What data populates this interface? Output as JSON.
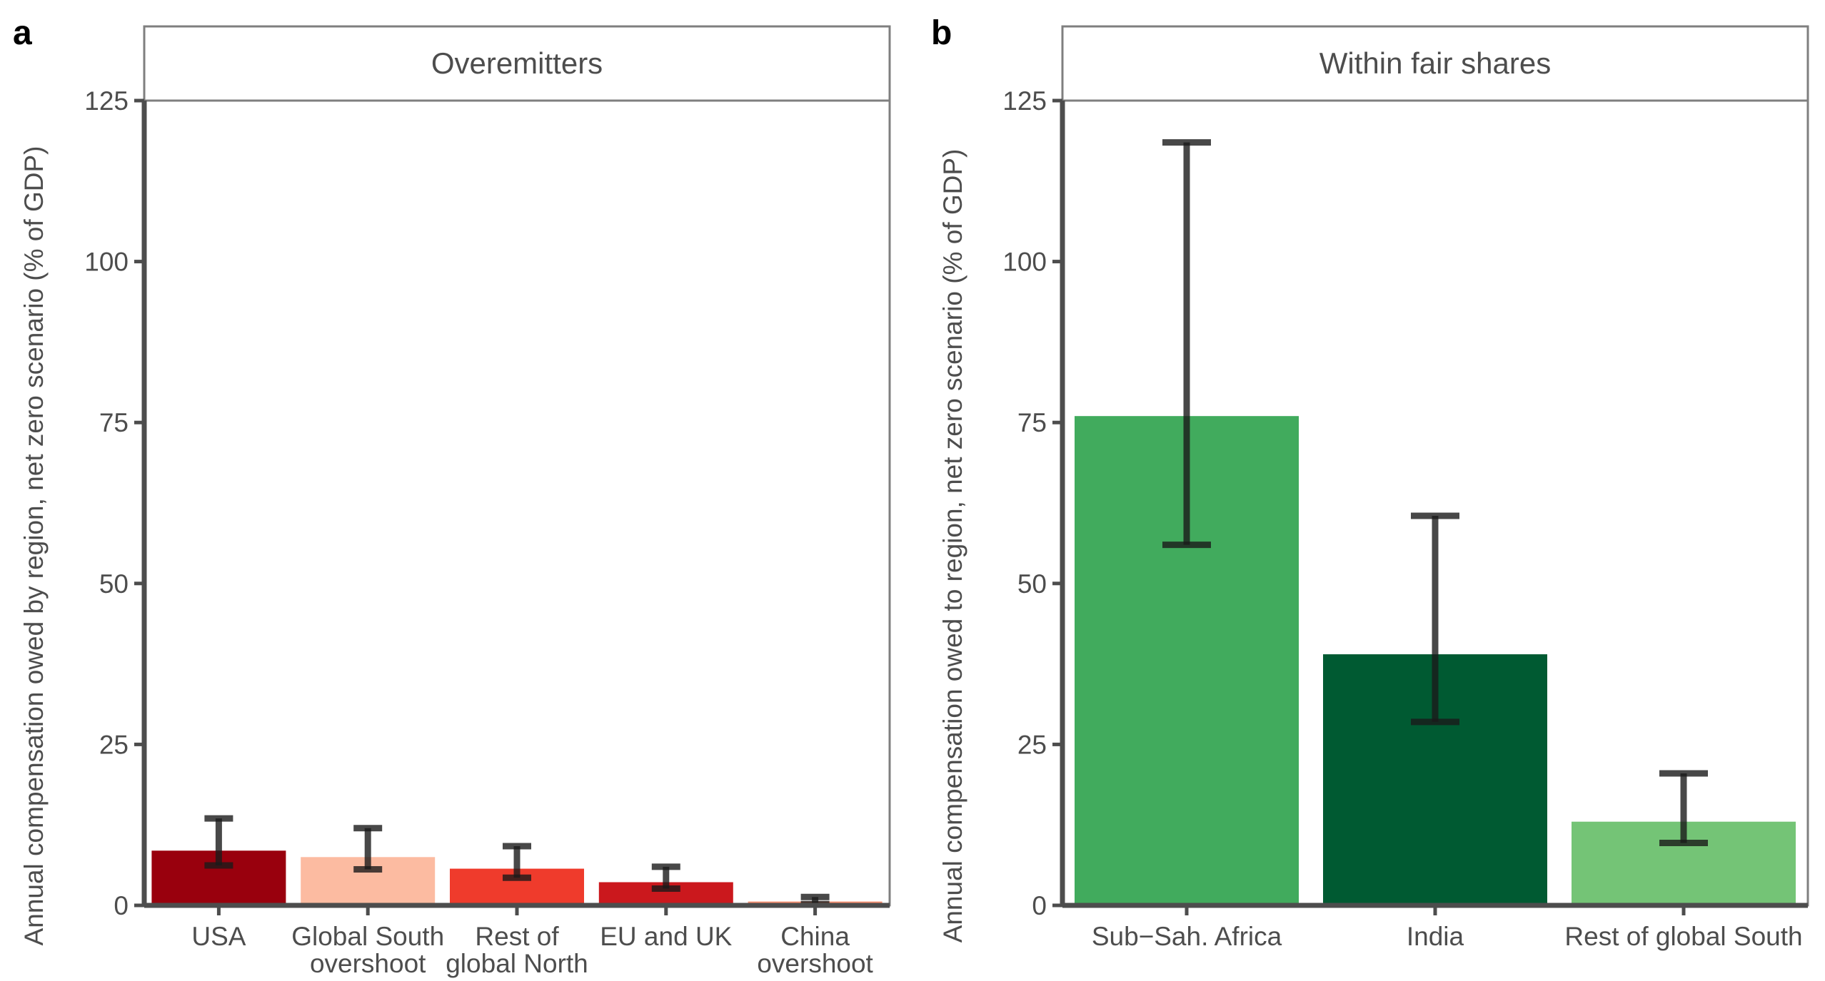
{
  "chart_data": [
    {
      "type": "bar",
      "panel_letter": "a",
      "strip_title": "Overemitters",
      "ylabel": "Annual compensation owed by region, net zero scenario (% of GDP)",
      "ylim": [
        0,
        125
      ],
      "yticks": [
        0,
        25,
        50,
        75,
        100,
        125
      ],
      "categories": [
        [
          "USA"
        ],
        [
          "Global South",
          "overshoot"
        ],
        [
          "Rest of",
          "global North"
        ],
        [
          "EU and UK"
        ],
        [
          "China",
          "overshoot"
        ]
      ],
      "values": [
        8.5,
        7.5,
        5.7,
        3.6,
        0.6
      ],
      "error_low": [
        6.2,
        5.6,
        4.3,
        2.6,
        0.2
      ],
      "error_high": [
        13.5,
        12.0,
        9.2,
        6.0,
        1.3
      ],
      "colors": [
        "#99000d",
        "#fcbba1",
        "#ef3b2c",
        "#cb181d",
        "#fc9272"
      ],
      "grid": false
    },
    {
      "type": "bar",
      "panel_letter": "b",
      "strip_title": "Within fair shares",
      "ylabel": "Annual compensation owed to region, net zero scenario (% of GDP)",
      "ylim": [
        0,
        125
      ],
      "yticks": [
        0,
        25,
        50,
        75,
        100,
        125
      ],
      "categories": [
        [
          "Sub−Sah. Africa"
        ],
        [
          "India"
        ],
        [
          "Rest of global South"
        ]
      ],
      "values": [
        76,
        39,
        13
      ],
      "error_low": [
        56,
        28.5,
        9.7
      ],
      "error_high": [
        118.5,
        60.5,
        20.5
      ],
      "colors": [
        "#41ab5d",
        "#005a32",
        "#74c476"
      ],
      "grid": false
    }
  ]
}
